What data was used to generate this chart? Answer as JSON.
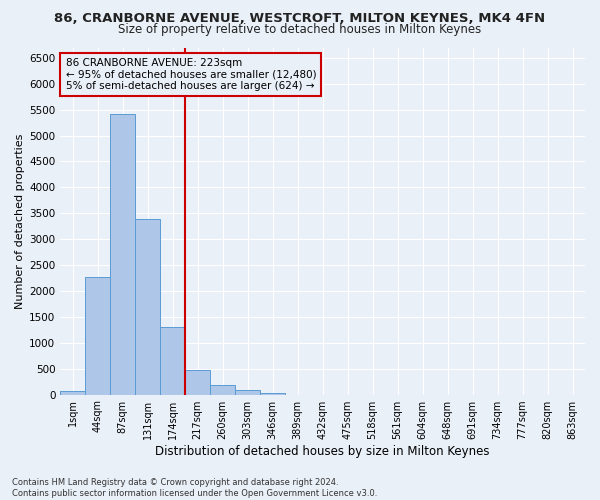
{
  "title": "86, CRANBORNE AVENUE, WESTCROFT, MILTON KEYNES, MK4 4FN",
  "subtitle": "Size of property relative to detached houses in Milton Keynes",
  "xlabel": "Distribution of detached houses by size in Milton Keynes",
  "ylabel": "Number of detached properties",
  "footer_line1": "Contains HM Land Registry data © Crown copyright and database right 2024.",
  "footer_line2": "Contains public sector information licensed under the Open Government Licence v3.0.",
  "bin_labels": [
    "1sqm",
    "44sqm",
    "87sqm",
    "131sqm",
    "174sqm",
    "217sqm",
    "260sqm",
    "303sqm",
    "346sqm",
    "389sqm",
    "432sqm",
    "475sqm",
    "518sqm",
    "561sqm",
    "604sqm",
    "648sqm",
    "691sqm",
    "734sqm",
    "777sqm",
    "820sqm",
    "863sqm"
  ],
  "bar_values": [
    75,
    2270,
    5420,
    3380,
    1300,
    480,
    185,
    80,
    30,
    0,
    0,
    0,
    0,
    0,
    0,
    0,
    0,
    0,
    0,
    0,
    0
  ],
  "bar_color": "#aec6e8",
  "bar_edgecolor": "#5a9bd4",
  "vline_x_index": 5,
  "vline_color": "#cc0000",
  "annotation_text": "86 CRANBORNE AVENUE: 223sqm\n← 95% of detached houses are smaller (12,480)\n5% of semi-detached houses are larger (624) →",
  "annotation_box_color": "#cc0000",
  "ylim": [
    0,
    6700
  ],
  "yticks": [
    0,
    500,
    1000,
    1500,
    2000,
    2500,
    3000,
    3500,
    4000,
    4500,
    5000,
    5500,
    6000,
    6500
  ],
  "bg_color": "#eaf0f8",
  "grid_color": "#ffffff",
  "title_fontsize": 9.5,
  "subtitle_fontsize": 8.5,
  "xlabel_fontsize": 8.5,
  "ylabel_fontsize": 8
}
